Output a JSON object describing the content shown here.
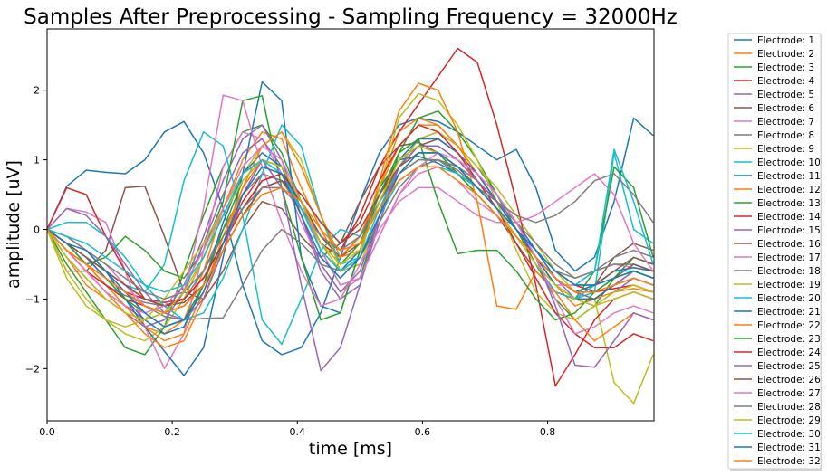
{
  "chart_data": {
    "type": "line",
    "title": "Samples After Preprocessing - Sampling Frequency = 32000Hz",
    "xlabel": "time [ms]",
    "ylabel": "amplitude [uV]",
    "xlim": [
      0,
      0.97
    ],
    "ylim": [
      -2.75,
      2.88
    ],
    "xticks": [
      "0.0",
      "0.2",
      "0.4",
      "0.6",
      "0.8"
    ],
    "xtick_values": [
      0,
      0.2,
      0.4,
      0.6,
      0.8
    ],
    "yticks": [
      "2",
      "1",
      "0",
      "−1",
      "−2"
    ],
    "ytick_values": [
      2,
      1,
      0,
      -1,
      -2
    ],
    "grid": false,
    "legend_position": "outside-right",
    "x": [
      0,
      0.03125,
      0.0625,
      0.09375,
      0.125,
      0.15625,
      0.1875,
      0.21875,
      0.25,
      0.28125,
      0.3125,
      0.34375,
      0.375,
      0.40625,
      0.4375,
      0.46875,
      0.5,
      0.53125,
      0.5625,
      0.59375,
      0.625,
      0.65625,
      0.6875,
      0.71875,
      0.75,
      0.78125,
      0.8125,
      0.84375,
      0.875,
      0.90625,
      0.9375,
      0.96875
    ],
    "palette": [
      "#1f77b4",
      "#ff7f0e",
      "#2ca02c",
      "#d62728",
      "#9467bd",
      "#8c564b",
      "#e377c2",
      "#7f7f7f",
      "#bcbd22",
      "#17becf"
    ],
    "series": [
      {
        "name": "Electrode: 1",
        "values": [
          0.0,
          0.62,
          0.85,
          0.82,
          0.8,
          1.0,
          1.4,
          1.55,
          1.1,
          0.3,
          -0.8,
          -1.6,
          -1.8,
          -1.7,
          -1.2,
          -0.4,
          0.4,
          1.1,
          1.5,
          1.6,
          1.55,
          1.4,
          1.2,
          1.0,
          1.15,
          0.6,
          -0.3,
          -0.6,
          -0.4,
          0.4,
          1.6,
          1.35
        ]
      },
      {
        "name": "Electrode: 2",
        "values": [
          0.0,
          -0.4,
          -0.8,
          -1.0,
          -1.2,
          -1.4,
          -1.5,
          -1.3,
          -0.6,
          0.3,
          1.0,
          1.4,
          1.3,
          0.6,
          0.0,
          -0.5,
          -0.3,
          0.6,
          1.4,
          1.6,
          1.5,
          1.2,
          0.8,
          0.4,
          0.0,
          -0.4,
          -0.8,
          -1.1,
          -1.0,
          -0.8,
          -0.6,
          -0.7
        ]
      },
      {
        "name": "Electrode: 3",
        "values": [
          0.0,
          -0.5,
          -0.9,
          -1.3,
          -1.7,
          -1.8,
          -1.4,
          -0.6,
          0.2,
          0.9,
          1.4,
          1.5,
          1.1,
          0.4,
          -0.3,
          -0.8,
          -0.7,
          0.2,
          1.1,
          1.6,
          1.7,
          1.4,
          1.0,
          0.5,
          0.0,
          -0.5,
          -1.0,
          -1.3,
          -1.1,
          -0.7,
          -0.4,
          -0.5
        ]
      },
      {
        "name": "Electrode: 4",
        "values": [
          0.0,
          -0.2,
          -0.5,
          -0.7,
          -0.9,
          -1.0,
          -1.05,
          -1.0,
          -0.7,
          -0.2,
          0.4,
          0.8,
          0.7,
          0.3,
          -0.2,
          -0.4,
          -0.1,
          0.5,
          1.0,
          1.2,
          1.1,
          0.9,
          0.6,
          0.3,
          0.0,
          -0.3,
          -0.6,
          -0.8,
          -0.9,
          -0.85,
          -0.8,
          -0.9
        ]
      },
      {
        "name": "Electrode: 5",
        "values": [
          0.0,
          -0.3,
          -0.6,
          -0.9,
          -1.1,
          -1.3,
          -1.2,
          -0.8,
          -0.1,
          0.7,
          1.3,
          1.5,
          1.0,
          0.2,
          -0.6,
          -1.0,
          -0.8,
          0.1,
          0.9,
          1.3,
          1.4,
          1.2,
          0.9,
          0.5,
          0.1,
          -0.3,
          -0.7,
          -1.0,
          -1.1,
          -0.9,
          -0.7,
          -0.8
        ]
      },
      {
        "name": "Electrode: 6",
        "values": [
          0.0,
          -0.6,
          -0.6,
          -0.3,
          0.6,
          0.62,
          -0.1,
          -0.9,
          -1.0,
          -0.6,
          0.0,
          0.4,
          0.3,
          -0.1,
          -0.4,
          -0.2,
          0.4,
          0.9,
          1.2,
          1.25,
          1.1,
          0.8,
          0.5,
          0.2,
          -0.2,
          -0.6,
          -0.9,
          -1.0,
          -0.8,
          -0.4,
          -0.2,
          -0.3
        ]
      },
      {
        "name": "Electrode: 7",
        "values": [
          0.0,
          0.3,
          0.25,
          0.1,
          -0.6,
          -1.4,
          -2.0,
          -1.5,
          -0.3,
          0.9,
          1.4,
          1.3,
          0.8,
          0.1,
          -0.5,
          -0.9,
          -0.7,
          -0.1,
          0.5,
          0.8,
          0.9,
          0.7,
          0.4,
          0.2,
          -0.1,
          -0.5,
          -0.8,
          -0.8,
          -0.6,
          -0.5,
          -0.55,
          -0.6
        ]
      },
      {
        "name": "Electrode: 8",
        "values": [
          0.0,
          -0.3,
          -0.5,
          -0.8,
          -0.95,
          -1.05,
          -1.1,
          -1.0,
          -0.6,
          0.0,
          0.5,
          0.8,
          0.7,
          0.3,
          -0.1,
          -0.3,
          -0.1,
          0.4,
          0.8,
          1.0,
          1.0,
          0.85,
          0.6,
          0.3,
          0.0,
          -0.3,
          -0.6,
          -0.7,
          -0.6,
          -0.5,
          -0.5,
          -0.6
        ]
      },
      {
        "name": "Electrode: 9",
        "values": [
          0.0,
          -0.6,
          -1.0,
          -1.3,
          -1.5,
          -1.6,
          -1.4,
          -1.0,
          -0.4,
          0.3,
          0.8,
          1.0,
          0.8,
          0.3,
          -0.2,
          -0.6,
          -0.5,
          0.2,
          0.9,
          1.3,
          1.4,
          1.2,
          0.9,
          0.6,
          0.2,
          -0.2,
          -0.6,
          -0.9,
          -1.0,
          -2.2,
          -2.5,
          -1.8
        ]
      },
      {
        "name": "Electrode: 10",
        "values": [
          0.0,
          -0.2,
          -0.4,
          -0.6,
          -0.8,
          -0.9,
          -0.5,
          0.7,
          1.4,
          1.2,
          0.2,
          -1.3,
          -1.65,
          -1.0,
          -0.3,
          0.0,
          -0.1,
          0.3,
          0.7,
          0.9,
          1.0,
          0.9,
          0.7,
          0.4,
          0.0,
          -0.4,
          -0.8,
          -1.0,
          -0.9,
          1.1,
          0.0,
          -0.2
        ]
      },
      {
        "name": "Electrode: 11",
        "values": [
          0.0,
          -0.1,
          -0.3,
          -0.6,
          -1.0,
          -1.4,
          -1.75,
          -2.1,
          -1.7,
          -0.4,
          0.8,
          2.12,
          1.85,
          -0.4,
          -1.1,
          -1.2,
          -0.3,
          0.6,
          1.0,
          1.05,
          0.95,
          0.8,
          0.6,
          0.4,
          0.1,
          -0.3,
          -0.7,
          -0.9,
          -0.8,
          -0.6,
          -0.55,
          -0.6
        ]
      },
      {
        "name": "Electrode: 12",
        "values": [
          0.0,
          -0.2,
          -0.5,
          -0.8,
          -1.1,
          -1.4,
          -1.6,
          -1.5,
          -0.9,
          -0.1,
          0.6,
          1.0,
          0.9,
          0.4,
          -0.1,
          -0.4,
          -0.1,
          0.6,
          1.2,
          1.5,
          1.5,
          1.2,
          0.8,
          0.4,
          0.0,
          -0.4,
          -0.8,
          -1.0,
          -1.0,
          -0.9,
          -0.85,
          -0.9
        ]
      },
      {
        "name": "Electrode: 13",
        "values": [
          0.0,
          -0.3,
          -0.5,
          -0.4,
          -0.1,
          -0.3,
          -0.6,
          -0.7,
          -0.3,
          0.4,
          1.85,
          1.92,
          0.6,
          -0.4,
          -1.3,
          -1.2,
          -0.3,
          0.6,
          1.0,
          1.2,
          1.1,
          0.8,
          0.5,
          0.2,
          -0.1,
          -0.5,
          -0.9,
          -1.0,
          -0.6,
          0.9,
          0.6,
          -0.4
        ]
      },
      {
        "name": "Electrode: 14",
        "values": [
          0.0,
          -0.3,
          -0.6,
          -0.8,
          -1.0,
          -1.1,
          -1.2,
          -1.1,
          -0.8,
          -0.3,
          0.2,
          0.6,
          0.7,
          0.4,
          -0.1,
          -0.3,
          0.2,
          0.9,
          1.4,
          1.8,
          2.2,
          2.6,
          2.4,
          1.5,
          0.4,
          -0.8,
          -2.25,
          -1.8,
          -1.3,
          -1.0,
          -0.9,
          -1.0
        ]
      },
      {
        "name": "Electrode: 15",
        "values": [
          0.0,
          -0.4,
          -0.7,
          -1.0,
          -1.2,
          -1.4,
          -1.3,
          -0.9,
          -0.2,
          0.5,
          1.1,
          1.3,
          0.9,
          0.2,
          -0.5,
          -0.9,
          -0.6,
          0.2,
          0.9,
          1.2,
          1.2,
          1.0,
          0.7,
          0.4,
          0.0,
          -0.4,
          -0.7,
          -0.9,
          -1.0,
          -0.8,
          -0.6,
          -0.7
        ]
      },
      {
        "name": "Electrode: 16",
        "values": [
          0.0,
          -0.2,
          -0.4,
          -0.6,
          -0.8,
          -1.0,
          -1.1,
          -1.0,
          -0.7,
          -0.2,
          0.3,
          0.7,
          0.8,
          0.4,
          -0.1,
          -0.4,
          -0.2,
          0.4,
          0.9,
          1.2,
          1.3,
          1.1,
          0.8,
          0.4,
          0.0,
          -0.4,
          -0.7,
          -0.9,
          -0.9,
          -0.7,
          -0.5,
          -0.6
        ]
      },
      {
        "name": "Electrode: 17",
        "values": [
          0.0,
          -0.1,
          -0.3,
          -0.5,
          -0.8,
          -1.1,
          -1.2,
          -0.9,
          0.3,
          1.93,
          1.85,
          0.9,
          0.1,
          -0.6,
          -1.1,
          -1.0,
          -0.5,
          0.0,
          0.4,
          0.6,
          0.6,
          0.4,
          0.2,
          0.1,
          0.1,
          0.2,
          0.4,
          0.6,
          0.8,
          0.5,
          -0.2,
          -0.6
        ]
      },
      {
        "name": "Electrode: 18",
        "values": [
          0.0,
          -0.2,
          -0.4,
          -0.7,
          -0.9,
          -1.1,
          -1.25,
          -1.3,
          -1.28,
          -1.27,
          -0.8,
          -0.3,
          0.0,
          -0.2,
          -0.5,
          -0.6,
          -0.4,
          0.1,
          0.6,
          0.9,
          1.0,
          0.9,
          0.7,
          0.4,
          0.1,
          -0.2,
          -0.5,
          -0.7,
          -0.6,
          -0.4,
          -0.3,
          -0.4
        ]
      },
      {
        "name": "Electrode: 19",
        "values": [
          0.0,
          -0.7,
          -1.1,
          -1.3,
          -1.4,
          -1.3,
          -1.0,
          -0.6,
          -0.2,
          0.3,
          0.8,
          1.2,
          1.4,
          1.0,
          0.2,
          -0.6,
          -0.4,
          0.6,
          1.6,
          1.95,
          1.85,
          1.5,
          1.0,
          0.4,
          -0.3,
          -0.9,
          -1.2,
          -1.3,
          -1.1,
          -0.9,
          -0.8,
          -0.9
        ]
      },
      {
        "name": "Electrode: 20",
        "values": [
          0.0,
          0.1,
          0.1,
          -0.1,
          -0.4,
          -0.8,
          -1.1,
          -1.3,
          -1.2,
          -0.7,
          0.0,
          0.8,
          1.5,
          1.2,
          0.2,
          -0.5,
          -0.4,
          0.3,
          0.9,
          1.1,
          1.1,
          0.9,
          0.6,
          0.3,
          -0.1,
          -0.5,
          -0.9,
          -1.0,
          -0.8,
          -0.6,
          -0.6,
          -0.7
        ]
      },
      {
        "name": "Electrode: 21",
        "values": [
          0.0,
          -0.2,
          -0.4,
          -0.7,
          -1.0,
          -1.3,
          -1.5,
          -1.4,
          -0.8,
          0.1,
          0.8,
          1.1,
          0.9,
          0.3,
          -0.3,
          -0.6,
          -0.3,
          0.4,
          1.0,
          1.3,
          1.3,
          1.1,
          0.8,
          0.4,
          0.0,
          -0.4,
          -0.8,
          -1.0,
          -1.0,
          -0.8,
          -0.7,
          -0.8
        ]
      },
      {
        "name": "Electrode: 22",
        "values": [
          0.0,
          -0.3,
          -0.6,
          -0.9,
          -1.2,
          -1.5,
          -1.7,
          -1.6,
          -1.0,
          -0.2,
          0.6,
          1.2,
          1.4,
          0.9,
          0.2,
          -0.4,
          -0.3,
          0.7,
          1.7,
          2.1,
          2.0,
          1.4,
          0.4,
          -1.1,
          -1.15,
          -0.6,
          -0.9,
          -1.3,
          -1.6,
          -1.4,
          -1.2,
          -1.3
        ]
      },
      {
        "name": "Electrode: 23",
        "values": [
          0.0,
          -0.2,
          -0.5,
          -0.7,
          -1.0,
          -1.2,
          -1.4,
          -1.3,
          -0.8,
          0.0,
          0.7,
          1.0,
          0.9,
          0.4,
          -0.2,
          -0.5,
          -0.2,
          0.5,
          1.1,
          1.3,
          0.4,
          -0.35,
          -0.3,
          -0.3,
          -0.6,
          -1.0,
          -1.3,
          -1.2,
          -0.9,
          -0.7,
          -0.6,
          -0.7
        ]
      },
      {
        "name": "Electrode: 24",
        "values": [
          0.0,
          0.6,
          0.5,
          -0.1,
          -0.6,
          -1.0,
          -1.1,
          -1.0,
          -0.7,
          -0.2,
          0.3,
          0.7,
          0.8,
          0.5,
          0.1,
          -0.2,
          0.1,
          0.7,
          1.2,
          1.5,
          1.4,
          1.1,
          0.7,
          0.3,
          -0.2,
          -0.7,
          -1.2,
          -1.5,
          -1.7,
          -1.7,
          -1.5,
          -1.6
        ]
      },
      {
        "name": "Electrode: 25",
        "values": [
          0.0,
          0.3,
          0.2,
          -0.1,
          -0.5,
          -0.9,
          -1.2,
          -1.3,
          -1.0,
          -0.3,
          0.5,
          1.0,
          0.6,
          -0.8,
          -2.03,
          -1.7,
          -0.8,
          0.2,
          0.9,
          1.2,
          1.2,
          1.0,
          0.7,
          0.4,
          0.1,
          -0.4,
          -1.1,
          -1.95,
          -1.98,
          -1.6,
          -1.2,
          -1.3
        ]
      },
      {
        "name": "Electrode: 26",
        "values": [
          0.0,
          -0.2,
          -0.4,
          -0.6,
          -0.8,
          -1.0,
          -1.1,
          -1.05,
          -0.8,
          -0.3,
          0.2,
          0.6,
          0.7,
          0.5,
          0.1,
          -0.2,
          0.0,
          0.5,
          0.9,
          1.1,
          1.1,
          0.9,
          0.6,
          0.3,
          0.0,
          -0.3,
          -0.6,
          -0.8,
          -0.8,
          -0.6,
          -0.4,
          -0.5
        ]
      },
      {
        "name": "Electrode: 27",
        "values": [
          0.0,
          -0.3,
          -0.6,
          -0.9,
          -1.1,
          -1.2,
          -1.1,
          -0.8,
          -0.3,
          0.3,
          0.9,
          1.2,
          1.0,
          0.4,
          -0.3,
          -0.8,
          -0.7,
          -0.1,
          0.5,
          0.9,
          1.1,
          1.0,
          0.8,
          0.5,
          0.1,
          -0.4,
          -1.0,
          -1.5,
          -1.4,
          -1.2,
          -1.1,
          -1.2
        ]
      },
      {
        "name": "Electrode: 28",
        "values": [
          0.0,
          -0.1,
          -0.3,
          -0.5,
          -0.7,
          -0.9,
          -1.0,
          -0.9,
          -0.6,
          -0.1,
          0.3,
          0.6,
          0.6,
          0.3,
          -0.1,
          -0.3,
          -0.1,
          0.4,
          0.8,
          1.0,
          1.0,
          0.8,
          0.6,
          0.4,
          0.2,
          0.1,
          0.2,
          0.4,
          0.7,
          0.8,
          0.5,
          0.1
        ]
      },
      {
        "name": "Electrode: 29",
        "values": [
          0.0,
          -0.4,
          -0.7,
          -1.0,
          -1.2,
          -1.3,
          -1.2,
          -0.9,
          -0.4,
          0.2,
          0.7,
          1.0,
          0.9,
          0.4,
          -0.2,
          -0.5,
          -0.3,
          0.4,
          1.0,
          1.2,
          1.1,
          0.9,
          0.6,
          0.3,
          -0.1,
          -0.5,
          -0.8,
          -1.0,
          -1.1,
          -1.0,
          -0.9,
          -1.0
        ]
      },
      {
        "name": "Electrode: 30",
        "values": [
          0.0,
          -0.1,
          -0.2,
          -0.4,
          -0.6,
          -0.8,
          -0.9,
          -0.8,
          -0.4,
          0.2,
          0.8,
          1.0,
          0.8,
          0.3,
          -0.3,
          -0.6,
          -0.4,
          0.2,
          0.7,
          0.9,
          0.9,
          0.8,
          0.6,
          0.3,
          0.0,
          -0.3,
          -0.6,
          -0.8,
          -0.6,
          1.15,
          0.4,
          -0.5
        ]
      },
      {
        "name": "Electrode: 31",
        "values": [
          0.0,
          -0.2,
          -0.3,
          -0.6,
          -0.9,
          -1.2,
          -1.4,
          -1.3,
          -0.9,
          -0.2,
          0.5,
          0.9,
          0.8,
          0.2,
          -0.4,
          -0.7,
          -0.4,
          0.2,
          0.8,
          1.1,
          1.1,
          0.9,
          0.6,
          0.3,
          0.0,
          -0.3,
          -0.6,
          -0.8,
          -0.8,
          -0.7,
          -0.6,
          -0.7
        ]
      },
      {
        "name": "Electrode: 32",
        "values": [
          0.0,
          -0.3,
          -0.5,
          -0.7,
          -0.9,
          -1.1,
          -1.2,
          -1.1,
          -0.8,
          -0.3,
          0.2,
          0.5,
          0.6,
          0.4,
          0.0,
          -0.3,
          -0.2,
          0.3,
          0.7,
          0.9,
          0.9,
          0.7,
          0.5,
          0.2,
          -0.1,
          -0.4,
          -0.7,
          -0.9,
          -0.9,
          -0.8,
          -0.7,
          -0.8
        ]
      }
    ]
  }
}
